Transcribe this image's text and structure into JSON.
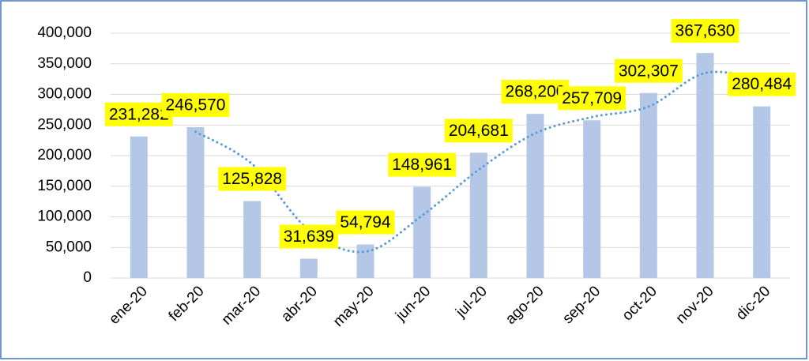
{
  "chart_data": {
    "type": "bar",
    "categories": [
      "ene-20",
      "feb-20",
      "mar-20",
      "abr-20",
      "may-20",
      "jun-20",
      "jul-20",
      "ago-20",
      "sep-20",
      "oct-20",
      "nov-20",
      "dic-20"
    ],
    "values": [
      231282,
      246570,
      125828,
      31639,
      54794,
      148961,
      204681,
      268200,
      257709,
      302307,
      367630,
      280484
    ],
    "value_labels": [
      "231,282",
      "246,570",
      "125,828",
      "31,639",
      "54,794",
      "148,961",
      "204,681",
      "268,200",
      "257,709",
      "302,307",
      "367,630",
      "280,484"
    ],
    "color": "#b4c7e7",
    "label_color": "#ffff00",
    "trendline": {
      "color": "#5b9bd5",
      "values": [
        null,
        238926,
        186199,
        78733,
        43216,
        101878,
        176821,
        236441,
        262955,
        280008,
        334969,
        324057
      ]
    },
    "ylim": [
      0,
      400000
    ],
    "yticks": [
      {
        "value": 0,
        "label": "0"
      },
      {
        "value": 50000,
        "label": "50,000"
      },
      {
        "value": 100000,
        "label": "100,000"
      },
      {
        "value": 150000,
        "label": "150,000"
      },
      {
        "value": 200000,
        "label": "200,000"
      },
      {
        "value": 250000,
        "label": "250,000"
      },
      {
        "value": 300000,
        "label": "300,000"
      },
      {
        "value": 350000,
        "label": "350,000"
      },
      {
        "value": 400000,
        "label": "400,000"
      }
    ],
    "grid": true
  }
}
